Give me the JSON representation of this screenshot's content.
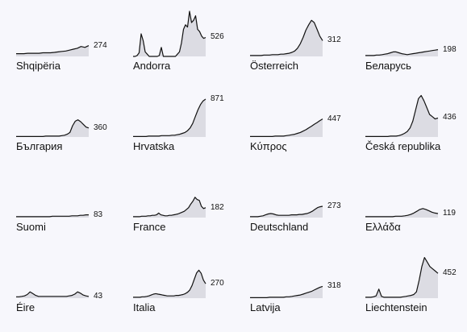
{
  "chart_data": [
    {
      "type": "area",
      "label": "Shqipëria",
      "last_value": "274",
      "values": [
        6,
        6,
        6,
        7,
        7,
        7,
        7,
        8,
        8,
        8,
        9,
        10,
        11,
        12,
        14,
        16,
        18,
        22,
        20,
        24
      ]
    },
    {
      "type": "area",
      "label": "Andorra",
      "last_value": "526",
      "values": [
        0,
        0,
        2,
        8,
        50,
        35,
        10,
        5,
        0,
        0,
        0,
        0,
        0,
        2,
        20,
        0,
        0,
        0,
        0,
        0,
        0,
        0,
        5,
        10,
        30,
        60,
        70,
        65,
        100,
        75,
        80,
        90,
        60,
        55,
        45,
        40,
        42
      ]
    },
    {
      "type": "area",
      "label": "Österreich",
      "last_value": "312",
      "values": [
        2,
        2,
        2,
        2,
        2,
        3,
        3,
        3,
        4,
        4,
        4,
        5,
        5,
        6,
        7,
        9,
        12,
        18,
        28,
        42,
        58,
        70,
        80,
        75,
        60,
        45,
        35
      ]
    },
    {
      "type": "area",
      "label": "Беларусь",
      "last_value": "198",
      "values": [
        2,
        2,
        2,
        2,
        3,
        3,
        4,
        5,
        6,
        8,
        10,
        10,
        8,
        6,
        5,
        4,
        5,
        6,
        7,
        8,
        9,
        10,
        11,
        12,
        13,
        14,
        15
      ]
    },
    {
      "type": "area",
      "label": "България",
      "last_value": "360",
      "values": [
        1,
        1,
        1,
        1,
        1,
        1,
        1,
        1,
        1,
        1,
        1,
        2,
        2,
        2,
        2,
        2,
        2,
        3,
        4,
        6,
        10,
        25,
        35,
        38,
        34,
        28,
        22,
        20
      ]
    },
    {
      "type": "area",
      "label": "Hrvatska",
      "last_value": "871",
      "values": [
        1,
        1,
        1,
        1,
        1,
        1,
        2,
        2,
        2,
        2,
        2,
        3,
        3,
        3,
        3,
        4,
        4,
        5,
        6,
        8,
        10,
        14,
        20,
        30,
        45,
        60,
        72,
        80,
        84
      ]
    },
    {
      "type": "area",
      "label": "Κύπρος",
      "last_value": "447",
      "values": [
        1,
        1,
        1,
        1,
        1,
        1,
        1,
        1,
        1,
        2,
        2,
        2,
        2,
        3,
        4,
        5,
        6,
        8,
        10,
        13,
        16,
        20,
        24,
        28,
        32,
        36,
        40
      ]
    },
    {
      "type": "area",
      "label": "Česká republika",
      "last_value": "436",
      "values": [
        1,
        1,
        1,
        1,
        1,
        1,
        1,
        1,
        1,
        2,
        2,
        2,
        3,
        5,
        8,
        12,
        20,
        35,
        60,
        85,
        92,
        80,
        65,
        50,
        45,
        40,
        42
      ]
    },
    {
      "type": "area",
      "label": "Suomi",
      "last_value": "83",
      "values": [
        2,
        2,
        2,
        2,
        2,
        2,
        2,
        2,
        2,
        2,
        2,
        2,
        2,
        3,
        3,
        3,
        3,
        3,
        3,
        3,
        4,
        4,
        4,
        5,
        5,
        6,
        6
      ]
    },
    {
      "type": "area",
      "label": "France",
      "last_value": "182",
      "values": [
        2,
        2,
        2,
        2,
        3,
        3,
        3,
        4,
        4,
        5,
        5,
        6,
        10,
        6,
        5,
        4,
        4,
        5,
        5,
        6,
        7,
        8,
        10,
        12,
        14,
        18,
        22,
        30,
        36,
        45,
        40,
        38,
        25,
        20,
        22
      ]
    },
    {
      "type": "area",
      "label": "Deutschland",
      "last_value": "273",
      "values": [
        2,
        2,
        2,
        2,
        3,
        4,
        6,
        8,
        9,
        8,
        6,
        5,
        5,
        5,
        5,
        5,
        6,
        6,
        6,
        7,
        7,
        8,
        9,
        11,
        14,
        18,
        22,
        24,
        25
      ]
    },
    {
      "type": "area",
      "label": "Ελλάδα",
      "last_value": "119",
      "values": [
        2,
        2,
        2,
        2,
        2,
        2,
        2,
        2,
        2,
        2,
        3,
        3,
        3,
        4,
        5,
        7,
        10,
        14,
        18,
        20,
        18,
        15,
        12,
        10,
        9
      ]
    },
    {
      "type": "area",
      "label": "Éire",
      "last_value": "43",
      "values": [
        3,
        3,
        4,
        5,
        8,
        14,
        10,
        6,
        4,
        4,
        4,
        4,
        4,
        4,
        4,
        4,
        4,
        4,
        4,
        5,
        6,
        9,
        14,
        11,
        7,
        5,
        4
      ]
    },
    {
      "type": "area",
      "label": "Italia",
      "last_value": "270",
      "values": [
        2,
        2,
        2,
        2,
        3,
        3,
        4,
        5,
        7,
        9,
        10,
        9,
        8,
        7,
        6,
        5,
        5,
        5,
        5,
        6,
        6,
        7,
        8,
        10,
        13,
        18,
        28,
        42,
        56,
        62,
        55,
        40,
        32
      ]
    },
    {
      "type": "area",
      "label": "Latvija",
      "last_value": "318",
      "values": [
        1,
        1,
        1,
        1,
        1,
        1,
        1,
        2,
        2,
        2,
        2,
        2,
        2,
        3,
        3,
        4,
        5,
        6,
        7,
        9,
        11,
        13,
        15,
        18,
        21,
        24,
        26
      ]
    },
    {
      "type": "area",
      "label": "Liechtenstein",
      "last_value": "452",
      "values": [
        2,
        2,
        2,
        3,
        5,
        20,
        4,
        2,
        2,
        2,
        2,
        2,
        2,
        2,
        3,
        4,
        5,
        6,
        8,
        14,
        40,
        70,
        90,
        80,
        70,
        65,
        60,
        55
      ]
    }
  ]
}
